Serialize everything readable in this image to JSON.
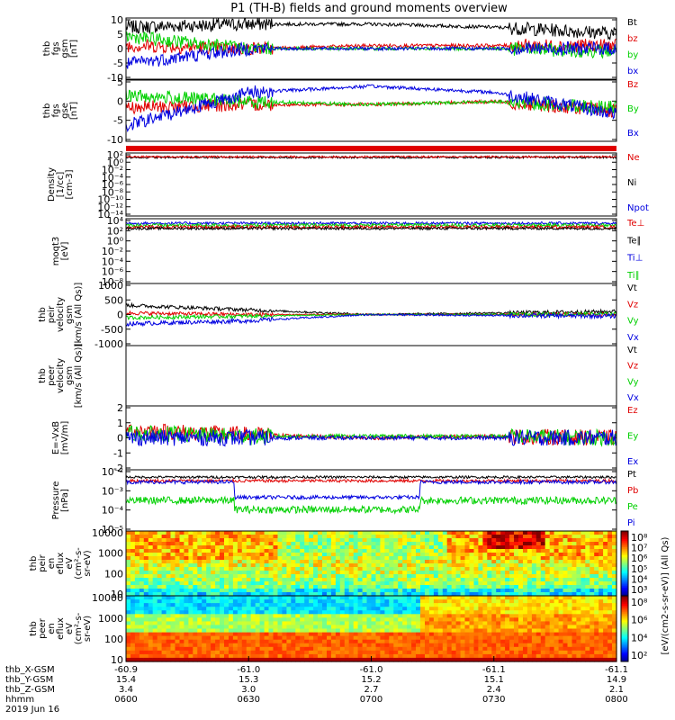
{
  "title": "P1 (TH-B) fields and ground moments overview",
  "date": "2019 Jun 16",
  "colors": {
    "black": "#000000",
    "red": "#e00000",
    "green": "#00d000",
    "blue": "#0000e0"
  },
  "colorbar_label": "[eV/(cm2-s-sr-eV)] (All Qs)",
  "footer": {
    "row_labels": [
      "thb_X-GSM",
      "thb_Y-GSM",
      "thb_Z-GSM",
      "hhmm"
    ],
    "columns": [
      {
        "x": "-60.9",
        "y": "15.4",
        "z": "3.4",
        "t": "0600"
      },
      {
        "x": "-61.0",
        "y": "15.3",
        "z": "3.0",
        "t": "0630"
      },
      {
        "x": "-61.0",
        "y": "15.2",
        "z": "2.7",
        "t": "0700"
      },
      {
        "x": "-61.1",
        "y": "15.1",
        "z": "2.4",
        "t": "0730"
      },
      {
        "x": "-61.1",
        "y": "14.9",
        "z": "2.1",
        "t": "0800"
      }
    ]
  },
  "panels": [
    {
      "id": "fgs-gsm",
      "ylabel": [
        "thb",
        "fgs",
        "gsm",
        "[nT]"
      ],
      "ticks": [
        "10",
        "5",
        "0",
        "-5",
        "-10"
      ],
      "legend": [
        "Bt",
        "bz",
        "by",
        "bx"
      ],
      "legend_colors": [
        "black",
        "red",
        "green",
        "blue"
      ]
    },
    {
      "id": "fgs-gse",
      "ylabel": [
        "thb",
        "fgs",
        "gse",
        "[nT]"
      ],
      "ticks": [
        "5",
        "0",
        "-5",
        "-10"
      ],
      "legend": [
        "Bz",
        "By",
        "Bx"
      ],
      "legend_colors": [
        "red",
        "green",
        "blue"
      ]
    },
    {
      "id": "density",
      "ylabel": [
        "Density",
        "[1/cc]",
        "[cm-3]"
      ],
      "ticks": [
        "10²",
        "10⁰",
        "10⁻²",
        "10⁻⁴",
        "10⁻⁶",
        "10⁻⁸",
        "10⁻¹⁰",
        "10⁻¹²",
        "10⁻¹⁴"
      ],
      "legend": [
        "Ne",
        "Ni",
        "Npot"
      ],
      "legend_colors": [
        "red",
        "black",
        "blue"
      ]
    },
    {
      "id": "temp",
      "ylabel": [
        "moqt3",
        "[eV]"
      ],
      "ticks": [
        "10⁴",
        "10²",
        "10⁰",
        "10⁻²",
        "10⁻⁴",
        "10⁻⁶",
        "10⁻⁸"
      ],
      "legend": [
        "Te⊥",
        "Te∥",
        "Ti⊥",
        "Ti∥"
      ],
      "legend_colors": [
        "red",
        "black",
        "blue",
        "green"
      ]
    },
    {
      "id": "peir-vel",
      "ylabel": [
        "thb",
        "peir",
        "velocity",
        "gsm",
        "[km/s (All Qs)]"
      ],
      "ticks": [
        "1000",
        "500",
        "0",
        "-500",
        "-1000"
      ],
      "legend": [
        "Vt",
        "Vz",
        "Vy",
        "Vx"
      ],
      "legend_colors": [
        "black",
        "red",
        "green",
        "blue"
      ]
    },
    {
      "id": "peer-vel",
      "ylabel": [
        "thb",
        "peer",
        "velocity",
        "gsm",
        "[km/s (All Qs)]"
      ],
      "ticks": [],
      "legend": [
        "Vt",
        "Vz",
        "Vy",
        "Vx"
      ],
      "legend_colors": [
        "black",
        "red",
        "green",
        "blue"
      ]
    },
    {
      "id": "efield",
      "ylabel": [
        "E=-VxB",
        "[mV/m]"
      ],
      "ticks": [
        "2",
        "1",
        "0",
        "-1",
        "-2"
      ],
      "legend": [
        "Ez",
        "Ey",
        "Ex"
      ],
      "legend_colors": [
        "red",
        "green",
        "blue"
      ]
    },
    {
      "id": "pressure",
      "ylabel": [
        "Pressure",
        "[nPa]"
      ],
      "ticks": [
        "10⁻²",
        "10⁻³",
        "10⁻⁴",
        "10⁻⁵"
      ],
      "legend": [
        "Pt",
        "Pb",
        "Pe",
        "Pi"
      ],
      "legend_colors": [
        "black",
        "red",
        "green",
        "blue"
      ]
    },
    {
      "id": "peir-spec",
      "ylabel": [
        "thb",
        "peir",
        "en",
        "eflux",
        "eV",
        "(cm²-s-",
        "sr-eV)"
      ],
      "ticks": [
        "10000",
        "1000",
        "100",
        "10"
      ],
      "legend": [],
      "legend_colors": []
    },
    {
      "id": "peer-spec",
      "ylabel": [
        "thb",
        "peer",
        "en",
        "eflux",
        "eV",
        "(cm²-s-",
        "sr-eV)"
      ],
      "ticks": [
        "10000",
        "1000",
        "100",
        "10"
      ],
      "legend": [],
      "legend_colors": []
    }
  ],
  "colorbars": [
    {
      "ticks": [
        "10⁸",
        "10⁷",
        "10⁶",
        "10⁵",
        "10⁴",
        "10³"
      ]
    },
    {
      "ticks": [
        "10⁸",
        "10⁶",
        "10⁴",
        "10²"
      ]
    }
  ],
  "chart_data": [
    {
      "type": "line",
      "panel": "fgs-gsm",
      "x": [
        "0600",
        "0630",
        "0700",
        "0730",
        "0800"
      ],
      "series": [
        {
          "name": "Bt",
          "values": [
            7,
            8,
            8,
            7,
            5
          ]
        },
        {
          "name": "bz",
          "values": [
            1,
            0,
            1,
            1,
            1
          ]
        },
        {
          "name": "by",
          "values": [
            4,
            0,
            0,
            0,
            -1
          ]
        },
        {
          "name": "bx",
          "values": [
            -5,
            0,
            0,
            0,
            0
          ]
        }
      ],
      "ylim": [
        -10,
        10
      ]
    },
    {
      "type": "line",
      "panel": "fgs-gse",
      "x": [
        "0600",
        "0630",
        "0700",
        "0730",
        "0800"
      ],
      "series": [
        {
          "name": "Bz",
          "values": [
            -1,
            0,
            0,
            1,
            -2
          ]
        },
        {
          "name": "By",
          "values": [
            3,
            1,
            0,
            1,
            -1
          ]
        },
        {
          "name": "Bx",
          "values": [
            -7,
            4,
            6,
            4,
            -3
          ]
        }
      ],
      "ylim": [
        -12,
        8
      ]
    },
    {
      "type": "line",
      "panel": "efield",
      "x": [
        "0600",
        "0630",
        "0700",
        "0730",
        "0800"
      ],
      "series": [
        {
          "name": "Ez",
          "values": [
            0.5,
            0.2,
            0,
            0.1,
            0
          ]
        },
        {
          "name": "Ey",
          "values": [
            0.3,
            0.1,
            0.1,
            0.1,
            0
          ]
        },
        {
          "name": "Ex",
          "values": [
            0,
            0,
            0,
            0,
            0
          ]
        }
      ],
      "ylim": [
        -2,
        2
      ]
    },
    {
      "type": "heatmap",
      "panel": "peir-spec",
      "xlabel": "hhmm",
      "ylabel": "eV",
      "ylim": [
        10,
        10000
      ]
    },
    {
      "type": "heatmap",
      "panel": "peer-spec",
      "xlabel": "hhmm",
      "ylabel": "eV",
      "ylim": [
        10,
        10000
      ]
    }
  ]
}
